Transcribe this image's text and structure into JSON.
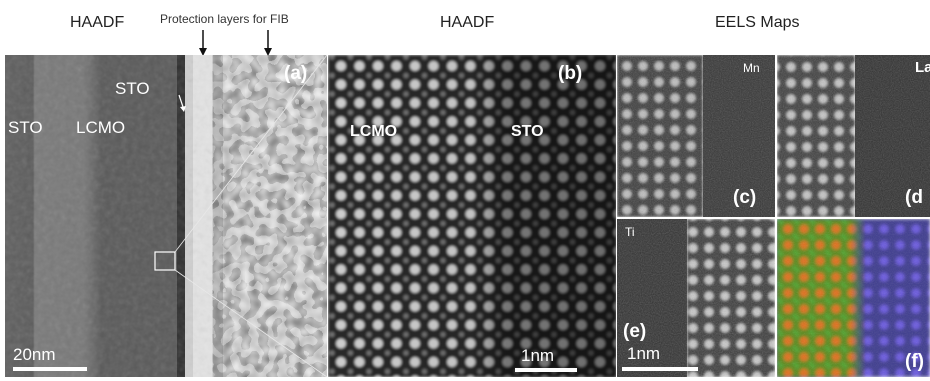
{
  "header": {
    "haadf_left": "HAADF",
    "protection": "Protection layers for FIB",
    "haadf_center": "HAADF",
    "eels": "EELS Maps"
  },
  "panel_a": {
    "label": "(a)",
    "sto_left": "STO",
    "lcmo": "LCMO",
    "sto_top": "STO",
    "scale": "20nm"
  },
  "panel_b": {
    "label": "(b)",
    "lcmo": "LCMO",
    "sto": "STO",
    "scale": "1nm"
  },
  "panel_c": {
    "label": "(c)",
    "element": "Mn"
  },
  "panel_d": {
    "label": "(d",
    "element": "La"
  },
  "panel_e": {
    "label": "(e)",
    "element": "Ti",
    "scale": "1nm"
  },
  "panel_f": {
    "label": "(f)"
  }
}
